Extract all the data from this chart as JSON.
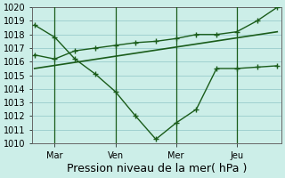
{
  "xlabel": "Pression niveau de la mer( hPa )",
  "background_color": "#cceee8",
  "grid_color": "#99cccc",
  "line_color": "#1a5c1a",
  "ylim": [
    1010,
    1020
  ],
  "ytick_step": 1,
  "day_labels": [
    "Mar",
    "Ven",
    "Mer",
    "Jeu"
  ],
  "day_positions": [
    1,
    4,
    7,
    10
  ],
  "xlim": [
    -0.1,
    12.2
  ],
  "series1_x": [
    0,
    1,
    2,
    3,
    4,
    5,
    6,
    7,
    8,
    9,
    10,
    11,
    12
  ],
  "series1_y": [
    1018.7,
    1017.8,
    1016.2,
    1015.1,
    1013.8,
    1012.0,
    1010.3,
    1011.5,
    1012.5,
    1015.5,
    1015.5,
    1015.6,
    1015.7
  ],
  "series2_x": [
    0,
    1,
    2,
    3,
    4,
    5,
    6,
    7,
    8,
    9,
    10,
    11,
    12
  ],
  "series2_y": [
    1016.5,
    1016.2,
    1016.8,
    1017.0,
    1017.2,
    1017.4,
    1017.5,
    1017.7,
    1018.0,
    1018.0,
    1018.2,
    1019.0,
    1020.0
  ],
  "series3_x": [
    0,
    12
  ],
  "series3_y": [
    1015.5,
    1018.2
  ],
  "vline_positions": [
    1,
    4,
    7,
    10
  ],
  "xlabel_fontsize": 9,
  "tick_fontsize": 7
}
